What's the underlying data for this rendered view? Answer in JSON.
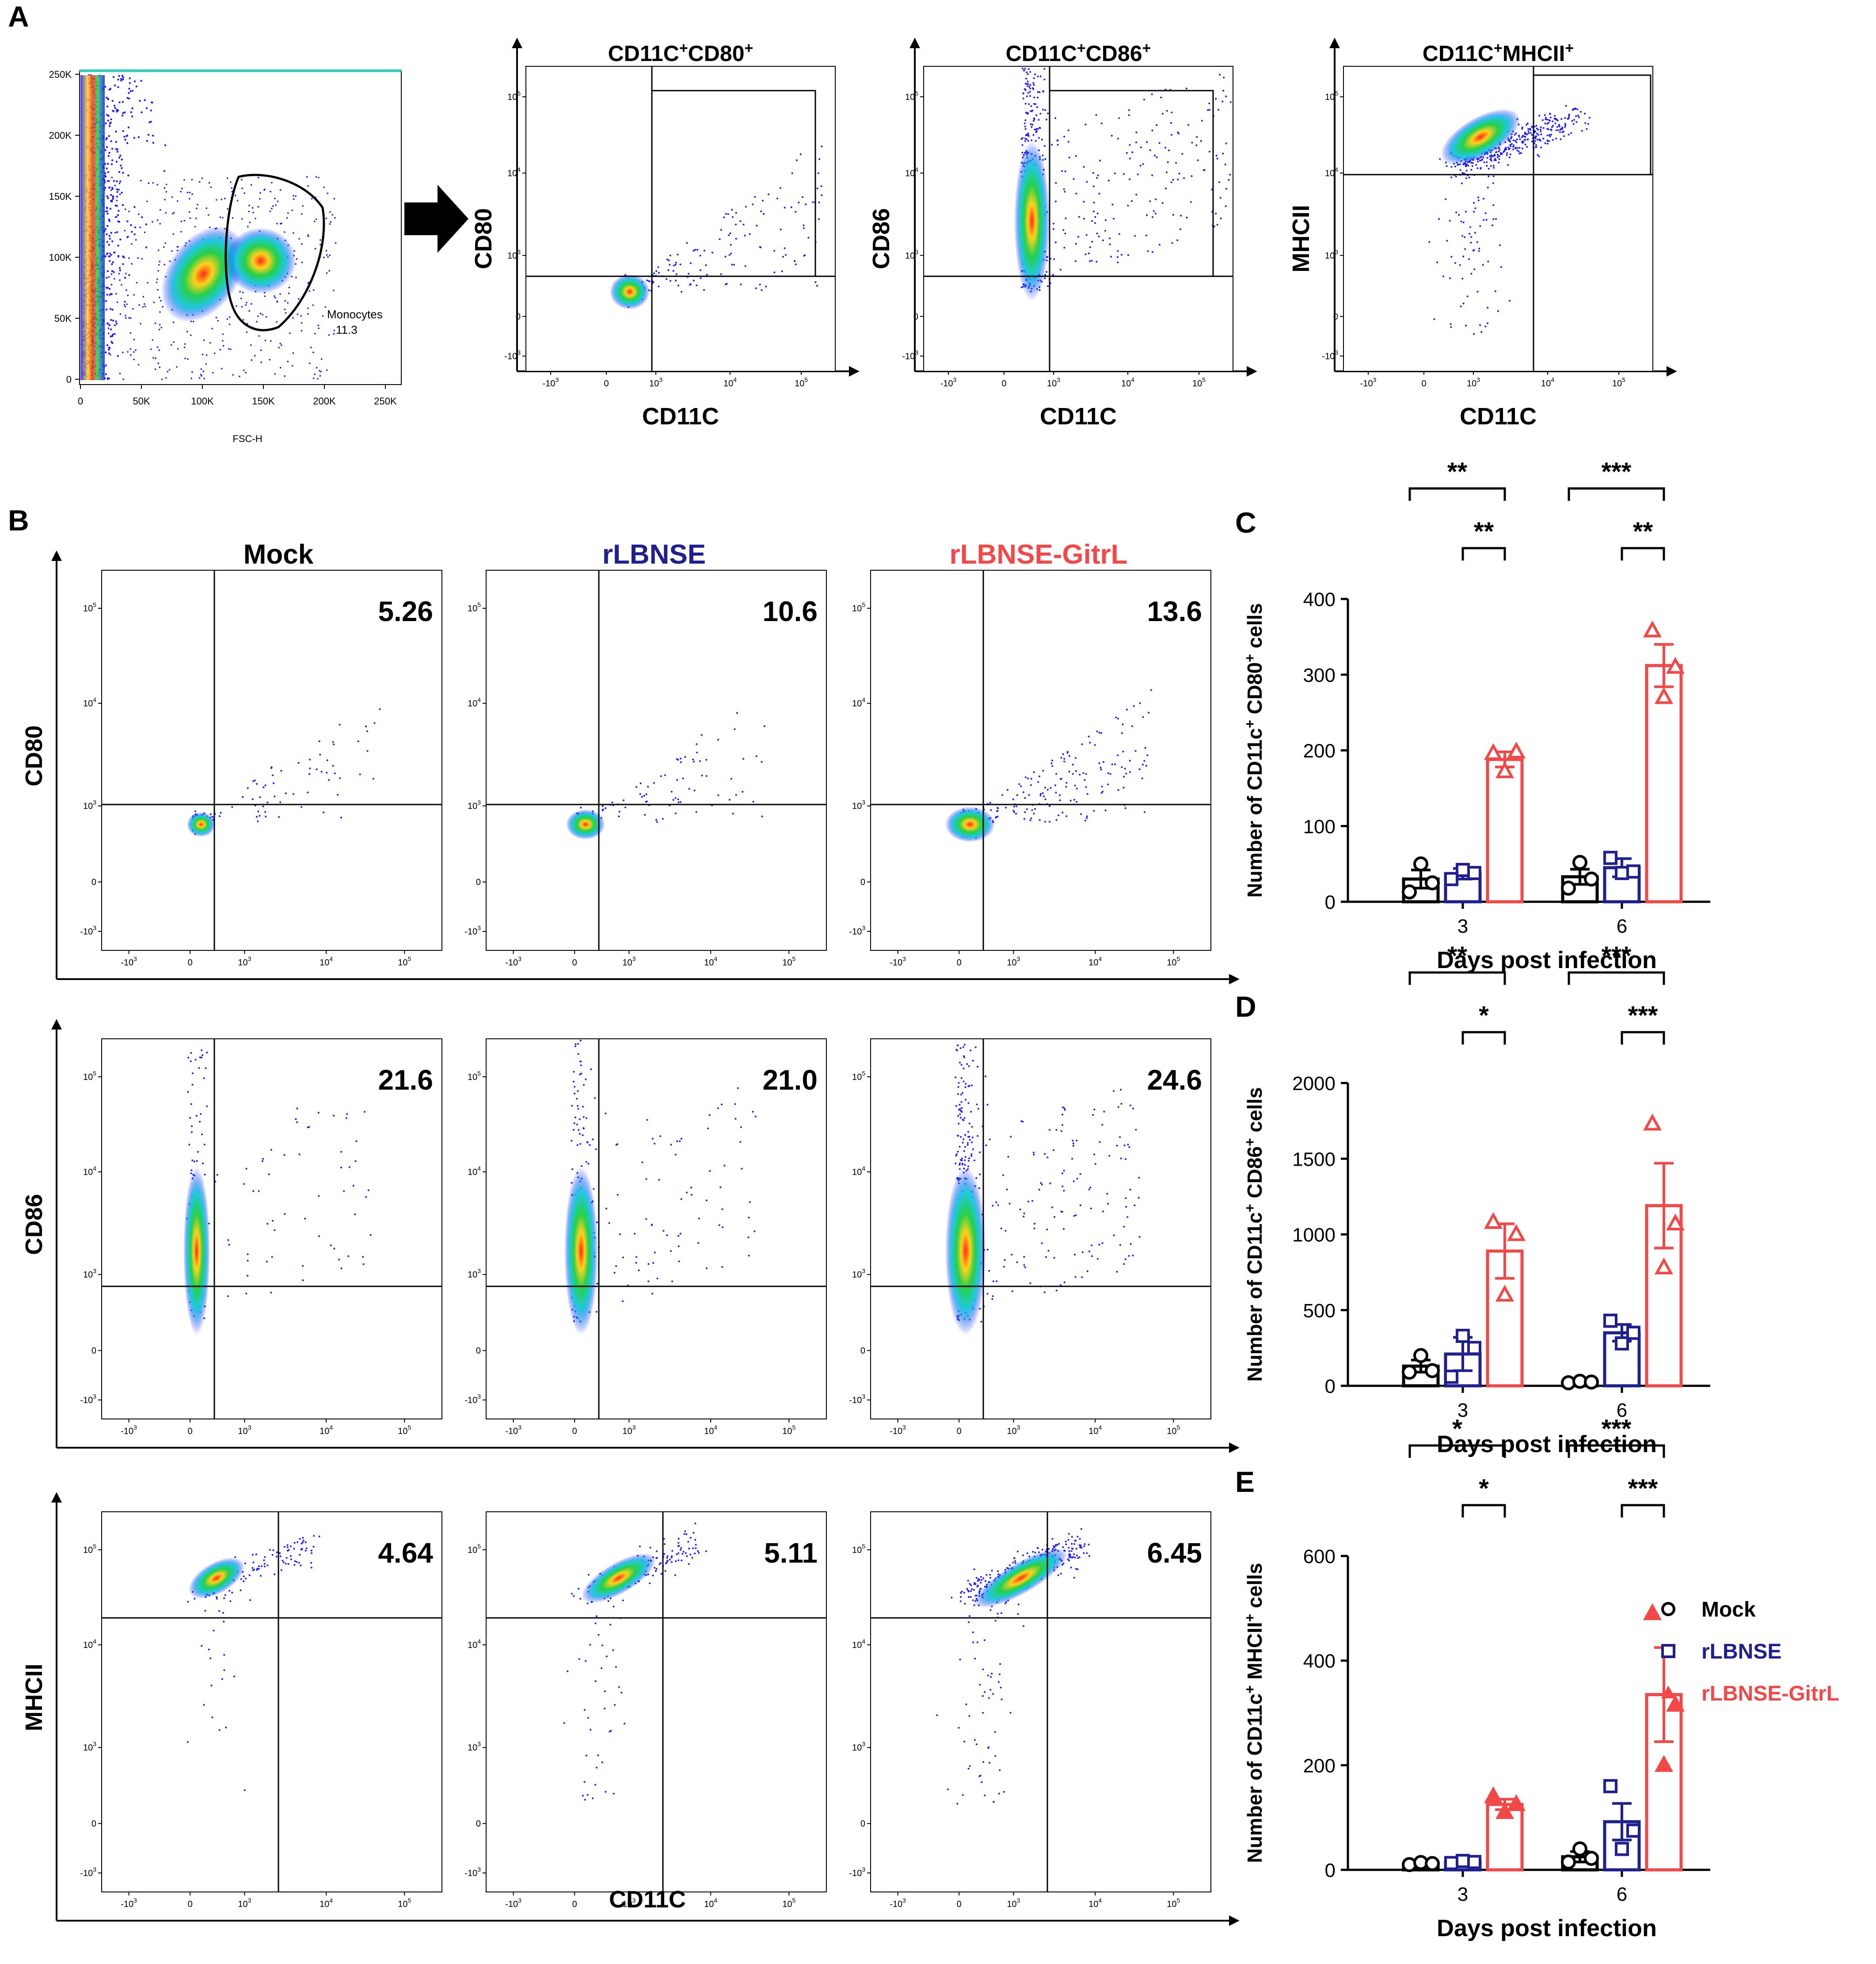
{
  "colors": {
    "mock": "#000000",
    "rlbnse": "#1f1f8f",
    "gitrl": "#f24848",
    "density_low": "#1a1aff",
    "density_mid": "#26d04a",
    "density_high": "#ff2a1a"
  },
  "panel_a": {
    "letter": "A",
    "scatter": {
      "xlabel": "FSC-H",
      "xticks": [
        "0",
        "50K",
        "100K",
        "150K",
        "200K",
        "250K"
      ],
      "yticks": [
        "0",
        "50K",
        "100K",
        "150K",
        "200K",
        "250K"
      ],
      "gate_name": "Monocytes",
      "gate_value": "11.3"
    },
    "arrow_icon": "right-arrow-icon",
    "plots": [
      {
        "title_base": "CD11C",
        "title_sup1": "+",
        "title_mid": "CD80",
        "title_sup2": "+",
        "ylabel": "CD80",
        "xlabel": "CD11C"
      },
      {
        "title_base": "CD11C",
        "title_sup1": "+",
        "title_mid": "CD86",
        "title_sup2": "+",
        "ylabel": "CD86",
        "xlabel": "CD11C"
      },
      {
        "title_base": "CD11C",
        "title_sup1": "+",
        "title_mid": "MHCII",
        "title_sup2": "+",
        "ylabel": "MHCII",
        "xlabel": "CD11C"
      }
    ]
  },
  "flow_ticks": {
    "x": [
      {
        "base": "-10",
        "exp": "3"
      },
      {
        "base": "0",
        "exp": ""
      },
      {
        "base": "10",
        "exp": "3"
      },
      {
        "base": "10",
        "exp": "4"
      },
      {
        "base": "10",
        "exp": "5"
      }
    ],
    "y": [
      {
        "base": "10",
        "exp": "5"
      },
      {
        "base": "10",
        "exp": "4"
      },
      {
        "base": "10",
        "exp": "3"
      },
      {
        "base": "0",
        "exp": ""
      },
      {
        "base": "-10",
        "exp": "3"
      }
    ]
  },
  "panel_b": {
    "letter": "B",
    "groups": [
      "Mock",
      "rLBNSE",
      "rLBNSE-GitrL"
    ],
    "rows": [
      {
        "marker": "CD80",
        "percentages": [
          "5.26",
          "10.6",
          "13.6"
        ]
      },
      {
        "marker": "CD86",
        "percentages": [
          "21.6",
          "21.0",
          "24.6"
        ]
      },
      {
        "marker": "MHCII",
        "percentages": [
          "4.64",
          "5.11",
          "6.45"
        ]
      }
    ],
    "xlabel": "CD11C"
  },
  "chart_data": [
    {
      "panel": "C",
      "type": "bar",
      "ylabel_pre": "Number of CD11c",
      "ylabel_sup1": "+",
      "ylabel_mid": " CD80",
      "ylabel_sup2": "+",
      "ylabel_post": " cells",
      "xlabel": "Days post infection",
      "categories": [
        "3",
        "6"
      ],
      "ylim": [
        0,
        400
      ],
      "yticks": [
        0,
        100,
        200,
        300,
        400
      ],
      "series": [
        {
          "name": "Mock",
          "values": [
            30,
            33
          ],
          "sem": [
            12,
            10
          ],
          "points": [
            [
              13,
              50,
              25
            ],
            [
              18,
              52,
              30
            ]
          ]
        },
        {
          "name": "rLBNSE",
          "values": [
            37,
            45
          ],
          "sem": [
            7,
            12
          ],
          "points": [
            [
              30,
              42,
              38
            ],
            [
              58,
              38,
              40
            ]
          ]
        },
        {
          "name": "rLBNSE-GitrL",
          "values": [
            188,
            312
          ],
          "sem": [
            10,
            28
          ],
          "points": [
            [
              196,
              172,
              198
            ],
            [
              358,
              270,
              310
            ]
          ]
        }
      ],
      "significance": [
        {
          "day": "3",
          "comparison": "Mock vs rLBNSE-GitrL",
          "label": "**"
        },
        {
          "day": "3",
          "comparison": "rLBNSE vs rLBNSE-GitrL",
          "label": "**"
        },
        {
          "day": "6",
          "comparison": "Mock vs rLBNSE-GitrL",
          "label": "***"
        },
        {
          "day": "6",
          "comparison": "rLBNSE vs rLBNSE-GitrL",
          "label": "**"
        }
      ]
    },
    {
      "panel": "D",
      "type": "bar",
      "ylabel_pre": "Number of CD11c",
      "ylabel_sup1": "+",
      "ylabel_mid": " CD86",
      "ylabel_sup2": "+",
      "ylabel_post": " cells",
      "xlabel": "Days post infection",
      "categories": [
        "3",
        "6"
      ],
      "ylim": [
        0,
        2000
      ],
      "yticks": [
        0,
        500,
        1000,
        1500,
        2000
      ],
      "series": [
        {
          "name": "Mock",
          "values": [
            130,
            25
          ],
          "sem": [
            40,
            8
          ],
          "points": [
            [
              90,
              200,
              100
            ],
            [
              20,
              30,
              25
            ]
          ]
        },
        {
          "name": "rLBNSE",
          "values": [
            210,
            350
          ],
          "sem": [
            110,
            55
          ],
          "points": [
            [
              60,
              330,
              250
            ],
            [
              430,
              280,
              350
            ]
          ]
        },
        {
          "name": "rLBNSE-GitrL",
          "values": [
            890,
            1190
          ],
          "sem": [
            180,
            280
          ],
          "points": [
            [
              1080,
              600,
              1000
            ],
            [
              1730,
              780,
              1070
            ]
          ]
        }
      ],
      "significance": [
        {
          "day": "3",
          "comparison": "Mock vs rLBNSE-GitrL",
          "label": "**"
        },
        {
          "day": "3",
          "comparison": "rLBNSE vs rLBNSE-GitrL",
          "label": "*"
        },
        {
          "day": "6",
          "comparison": "Mock vs rLBNSE-GitrL",
          "label": "***"
        },
        {
          "day": "6",
          "comparison": "rLBNSE vs rLBNSE-GitrL",
          "label": "***"
        }
      ]
    },
    {
      "panel": "E",
      "type": "bar",
      "ylabel_pre": "Number of CD11c",
      "ylabel_sup1": "+",
      "ylabel_mid": " MHCII",
      "ylabel_sup2": "+",
      "ylabel_post": " cells",
      "xlabel": "Days post infection",
      "categories": [
        "3",
        "6"
      ],
      "ylim": [
        0,
        600
      ],
      "yticks": [
        0,
        200,
        400,
        600
      ],
      "series": [
        {
          "name": "Mock",
          "values": [
            12,
            25
          ],
          "sem": [
            3,
            10
          ],
          "points": [
            [
              10,
              14,
              12
            ],
            [
              15,
              40,
              22
            ]
          ]
        },
        {
          "name": "rLBNSE",
          "values": [
            15,
            92
          ],
          "sem": [
            3,
            35
          ],
          "points": [
            [
              13,
              17,
              15
            ],
            [
              160,
              40,
              75
            ]
          ]
        },
        {
          "name": "rLBNSE-GitrL",
          "values": [
            125,
            335
          ],
          "sem": [
            10,
            90
          ],
          "points": [
            [
              140,
              110,
              125
            ],
            [
              490,
              200,
              315
            ]
          ]
        }
      ],
      "significance": [
        {
          "day": "3",
          "comparison": "Mock vs rLBNSE-GitrL",
          "label": "*"
        },
        {
          "day": "3",
          "comparison": "rLBNSE vs rLBNSE-GitrL",
          "label": "*"
        },
        {
          "day": "6",
          "comparison": "Mock vs rLBNSE-GitrL",
          "label": "***"
        },
        {
          "day": "6",
          "comparison": "rLBNSE vs rLBNSE-GitrL",
          "label": "***"
        }
      ]
    }
  ],
  "legend": [
    {
      "name": "Mock",
      "marker": "circle-icon"
    },
    {
      "name": "rLBNSE",
      "marker": "square-icon"
    },
    {
      "name": "rLBNSE-GitrL",
      "marker": "triangle-icon"
    }
  ]
}
